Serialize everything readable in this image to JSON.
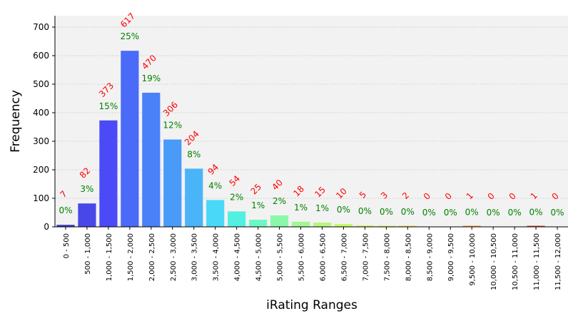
{
  "chart_data": {
    "type": "bar",
    "xlabel": "iRating Ranges",
    "ylabel": "Frequency",
    "ylim": [
      0,
      740
    ],
    "yticks": [
      "0",
      "100",
      "200",
      "300",
      "400",
      "500",
      "600",
      "700"
    ],
    "grid": true,
    "categories": [
      "0 - 500",
      "500 - 1,000",
      "1,000 - 1,500",
      "1,500 - 2,000",
      "2,000 - 2,500",
      "2,500 - 3,000",
      "3,000 - 3,500",
      "3,500 - 4,000",
      "4,000 - 4,500",
      "4,500 - 5,000",
      "5,000 - 5,500",
      "5,500 - 6,000",
      "6,000 - 6,500",
      "6,500 - 7,000",
      "7,000 - 7,500",
      "7,500 - 8,000",
      "8,000 - 8,500",
      "8,500 - 9,000",
      "9,000 - 9,500",
      "9,500 - 10,000",
      "10,000 - 10,500",
      "10,500 - 11,000",
      "11,000 - 11,500",
      "11,500 - 12,000"
    ],
    "values": [
      7,
      82,
      373,
      617,
      470,
      306,
      204,
      94,
      54,
      25,
      40,
      18,
      15,
      10,
      5,
      3,
      2,
      0,
      0,
      1,
      0,
      0,
      1,
      0
    ],
    "count_labels": [
      "7",
      "82",
      "373",
      "617",
      "470",
      "306",
      "204",
      "94",
      "54",
      "25",
      "40",
      "18",
      "15",
      "10",
      "5",
      "3",
      "2",
      "0",
      "0",
      "1",
      "0",
      "0",
      "1",
      "0"
    ],
    "percent_labels": [
      "0%",
      "3%",
      "15%",
      "25%",
      "19%",
      "12%",
      "8%",
      "4%",
      "2%",
      "1%",
      "2%",
      "1%",
      "1%",
      "0%",
      "0%",
      "0%",
      "0%",
      "0%",
      "0%",
      "0%",
      "0%",
      "0%",
      "0%",
      "0%"
    ],
    "colors": [
      "#3b3bc0",
      "#4848e8",
      "#4a4af8",
      "#4a6af8",
      "#4a80f8",
      "#4a9af8",
      "#4ab4f8",
      "#4ad8f8",
      "#52f0e0",
      "#6cf8c4",
      "#8af8aa",
      "#a0f890",
      "#b4f87c",
      "#c6f86a",
      "#d8f45c",
      "#e4ea54",
      "#ecd84c",
      "#f0c444",
      "#f4ae3c",
      "#f69236",
      "#f87430",
      "#f8562a",
      "#e83a26",
      "#c42a22"
    ],
    "plot_background": "#f2f2f2",
    "count_label_color": "#ff0000",
    "percent_label_color": "#008000"
  }
}
